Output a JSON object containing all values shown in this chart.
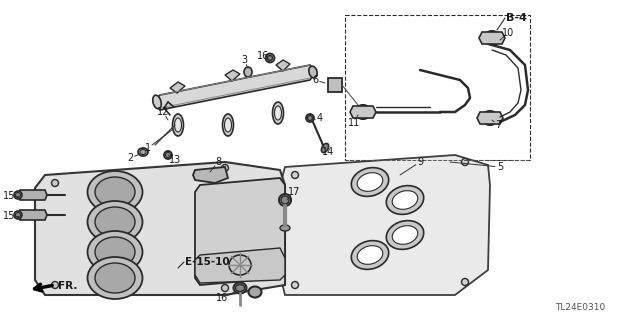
{
  "background_color": "#ffffff",
  "line_color": "#2a2a2a",
  "text_color": "#1a1a1a",
  "figsize": [
    6.4,
    3.19
  ],
  "dpi": 100,
  "diagram_code": "TL24E0310",
  "b4_label": "B-4",
  "e1510_label": "E-15-10",
  "fr_label": "FR.",
  "part_nums": [
    "1",
    "2",
    "3",
    "4",
    "5",
    "6",
    "7",
    "8",
    "9",
    "10",
    "11",
    "12",
    "13",
    "14",
    "15",
    "15",
    "16",
    "17"
  ]
}
